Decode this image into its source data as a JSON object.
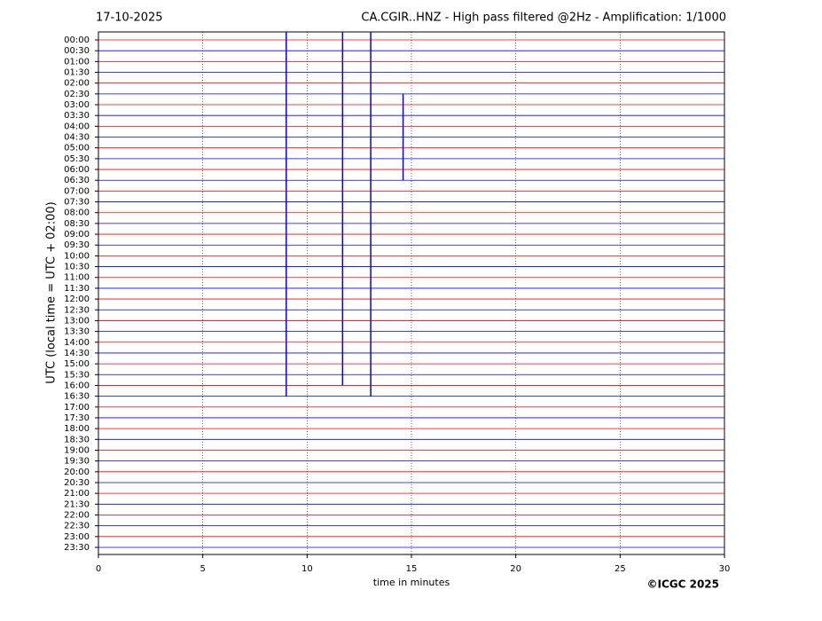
{
  "chart_data": {
    "type": "helicorder",
    "date": "17-10-2025",
    "title": "CA.CGIR..HNZ - High pass filtered @2Hz - Amplification: 1/1000",
    "xlabel": "time in minutes",
    "ylabel": "UTC (local time = UTC + 02:00)",
    "credit": "©ICGC 2025",
    "categories": [
      "00:00",
      "00:30",
      "01:00",
      "01:30",
      "02:00",
      "02:30",
      "03:00",
      "03:30",
      "04:00",
      "04:30",
      "05:00",
      "05:30",
      "06:00",
      "06:30",
      "07:00",
      "07:30",
      "08:00",
      "08:30",
      "09:00",
      "09:30",
      "10:00",
      "10:30",
      "11:00",
      "11:30",
      "12:00",
      "12:30",
      "13:00",
      "13:30",
      "14:00",
      "14:30",
      "15:00",
      "15:30",
      "16:00",
      "16:30",
      "17:00",
      "17:30",
      "18:00",
      "18:30",
      "19:00",
      "19:30",
      "20:00",
      "20:30",
      "21:00",
      "21:30",
      "22:00",
      "22:30",
      "23:00",
      "23:30"
    ],
    "colors": [
      "#ff0000",
      "#0000ff"
    ],
    "xlim": [
      0,
      30
    ],
    "xticks": [
      0,
      5,
      10,
      15,
      20,
      25,
      30
    ],
    "grid": true,
    "events": [
      {
        "x": 9.0,
        "start": "00:00",
        "end": "16:30"
      },
      {
        "x": 11.7,
        "start": "00:00",
        "end": "16:00"
      },
      {
        "x": 13.05,
        "start": "00:00",
        "end": "16:30"
      },
      {
        "x": 14.6,
        "start": "02:30",
        "end": "06:30"
      }
    ]
  }
}
